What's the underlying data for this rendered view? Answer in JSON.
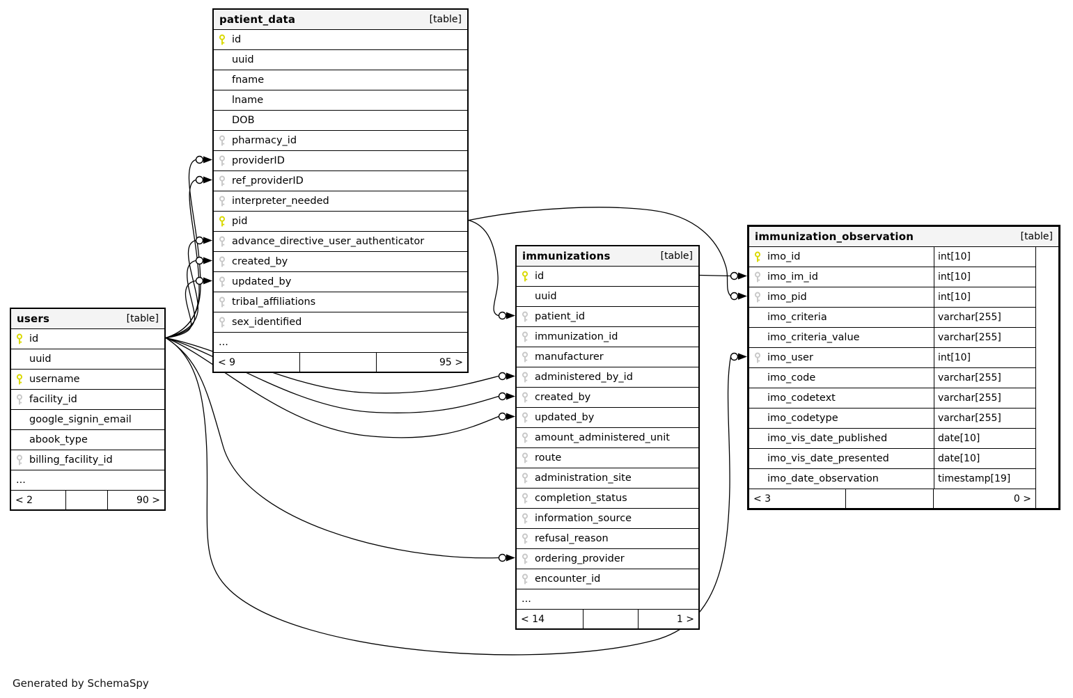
{
  "credit": "Generated by SchemaSpy",
  "colors": {
    "primary_key_icon": "#d9d900",
    "foreign_key_icon": "#c8c8c8",
    "header_background": "#f4f4f4",
    "border": "#000000",
    "background": "#ffffff"
  },
  "tables": {
    "patient_data": {
      "title": "patient_data",
      "badge": "[table]",
      "columns": [
        {
          "name": "id",
          "key": "pk"
        },
        {
          "name": "uuid",
          "key": ""
        },
        {
          "name": "fname",
          "key": ""
        },
        {
          "name": "lname",
          "key": ""
        },
        {
          "name": "DOB",
          "key": ""
        },
        {
          "name": "pharmacy_id",
          "key": "fk"
        },
        {
          "name": "providerID",
          "key": "fk"
        },
        {
          "name": "ref_providerID",
          "key": "fk"
        },
        {
          "name": "interpreter_needed",
          "key": "fk"
        },
        {
          "name": "pid",
          "key": "pk"
        },
        {
          "name": "advance_directive_user_authenticator",
          "key": "fk"
        },
        {
          "name": "created_by",
          "key": "fk"
        },
        {
          "name": "updated_by",
          "key": "fk"
        },
        {
          "name": "tribal_affiliations",
          "key": "fk"
        },
        {
          "name": "sex_identified",
          "key": "fk"
        },
        {
          "name": "...",
          "key": "",
          "ellipsis": true
        }
      ],
      "footer": {
        "left": "< 9",
        "right": "95 >"
      }
    },
    "users": {
      "title": "users",
      "badge": "[table]",
      "columns": [
        {
          "name": "id",
          "key": "pk"
        },
        {
          "name": "uuid",
          "key": ""
        },
        {
          "name": "username",
          "key": "pk"
        },
        {
          "name": "facility_id",
          "key": "fk"
        },
        {
          "name": "google_signin_email",
          "key": ""
        },
        {
          "name": "abook_type",
          "key": ""
        },
        {
          "name": "billing_facility_id",
          "key": "fk"
        },
        {
          "name": "...",
          "key": "",
          "ellipsis": true
        }
      ],
      "footer": {
        "left": "< 2",
        "right": "90 >"
      }
    },
    "immunizations": {
      "title": "immunizations",
      "badge": "[table]",
      "columns": [
        {
          "name": "id",
          "key": "pk"
        },
        {
          "name": "uuid",
          "key": ""
        },
        {
          "name": "patient_id",
          "key": "fk"
        },
        {
          "name": "immunization_id",
          "key": "fk"
        },
        {
          "name": "manufacturer",
          "key": "fk"
        },
        {
          "name": "administered_by_id",
          "key": "fk"
        },
        {
          "name": "created_by",
          "key": "fk"
        },
        {
          "name": "updated_by",
          "key": "fk"
        },
        {
          "name": "amount_administered_unit",
          "key": "fk"
        },
        {
          "name": "route",
          "key": "fk"
        },
        {
          "name": "administration_site",
          "key": "fk"
        },
        {
          "name": "completion_status",
          "key": "fk"
        },
        {
          "name": "information_source",
          "key": "fk"
        },
        {
          "name": "refusal_reason",
          "key": "fk"
        },
        {
          "name": "ordering_provider",
          "key": "fk"
        },
        {
          "name": "encounter_id",
          "key": "fk"
        },
        {
          "name": "...",
          "key": "",
          "ellipsis": true
        }
      ],
      "footer": {
        "left": "< 14",
        "right": "1 >"
      }
    },
    "immunization_observation": {
      "title": "immunization_observation",
      "badge": "[table]",
      "columns": [
        {
          "name": "imo_id",
          "key": "pk",
          "type": "int[10]"
        },
        {
          "name": "imo_im_id",
          "key": "fk",
          "type": "int[10]"
        },
        {
          "name": "imo_pid",
          "key": "fk",
          "type": "int[10]"
        },
        {
          "name": "imo_criteria",
          "key": "",
          "type": "varchar[255]"
        },
        {
          "name": "imo_criteria_value",
          "key": "",
          "type": "varchar[255]"
        },
        {
          "name": "imo_user",
          "key": "fk",
          "type": "int[10]"
        },
        {
          "name": "imo_code",
          "key": "",
          "type": "varchar[255]"
        },
        {
          "name": "imo_codetext",
          "key": "",
          "type": "varchar[255]"
        },
        {
          "name": "imo_codetype",
          "key": "",
          "type": "varchar[255]"
        },
        {
          "name": "imo_vis_date_published",
          "key": "",
          "type": "date[10]"
        },
        {
          "name": "imo_vis_date_presented",
          "key": "",
          "type": "date[10]"
        },
        {
          "name": "imo_date_observation",
          "key": "",
          "type": "timestamp[19]"
        }
      ],
      "footer": {
        "left": "< 3",
        "right": "0 >"
      }
    }
  },
  "relationships": [
    {
      "from": "users.id",
      "to": "patient_data.providerID"
    },
    {
      "from": "users.id",
      "to": "patient_data.ref_providerID"
    },
    {
      "from": "users.id",
      "to": "patient_data.advance_directive_user_authenticator"
    },
    {
      "from": "users.id",
      "to": "patient_data.created_by"
    },
    {
      "from": "users.id",
      "to": "patient_data.updated_by"
    },
    {
      "from": "users.id",
      "to": "immunizations.administered_by_id"
    },
    {
      "from": "users.id",
      "to": "immunizations.created_by"
    },
    {
      "from": "users.id",
      "to": "immunizations.updated_by"
    },
    {
      "from": "users.id",
      "to": "immunizations.ordering_provider"
    },
    {
      "from": "users.id",
      "to": "immunization_observation.imo_user"
    },
    {
      "from": "patient_data.pid",
      "to": "immunizations.patient_id"
    },
    {
      "from": "patient_data.pid",
      "to": "immunization_observation.imo_pid"
    },
    {
      "from": "immunizations.id",
      "to": "immunization_observation.imo_im_id"
    }
  ]
}
